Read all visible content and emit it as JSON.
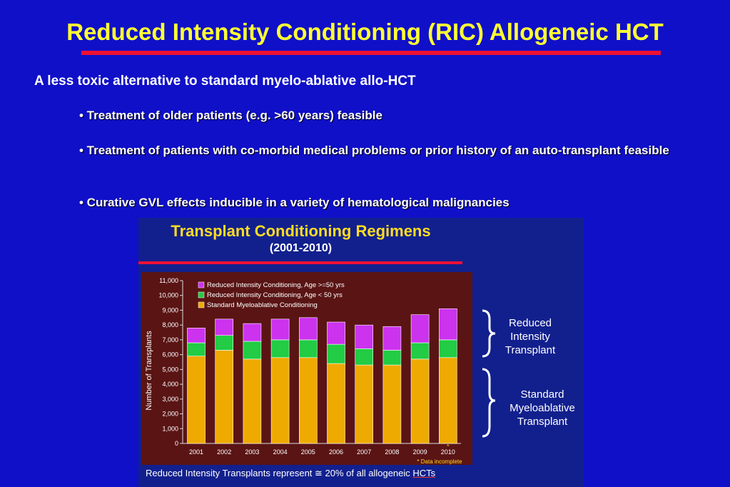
{
  "slide": {
    "title": "Reduced Intensity Conditioning (RIC) Allogeneic HCT",
    "intro": "A less toxic alternative to standard myelo-ablative allo-HCT",
    "bullets": [
      "• Treatment of older patients (e.g. >60 years) feasible",
      "• Treatment of patients with co-morbid medical problems or prior history of an auto-transplant feasible",
      "• Curative GVL effects inducible in a variety of hematological malignancies"
    ]
  },
  "figure": {
    "brace_top": "Reduced\nIntensity\nTransplant",
    "brace_bottom": "Standard\nMyeloablative\nTransplant",
    "footnote_main": "Reduced Intensity Transplants represent ≅ 20% of all allogeneic ",
    "footnote_hcts": "HCTs"
  },
  "colors": {
    "background": "#1010c8",
    "title": "#ffff33",
    "rule": "#ee1133",
    "ric_50_plus": "#cc33ee",
    "ric_under_50": "#22cc44",
    "standard_myeloablative": "#eeaa00",
    "plot_background": "#5a1414"
  },
  "chart_data": {
    "type": "bar",
    "stacked": true,
    "title": "Transplant Conditioning Regimens",
    "subtitle": "(2001-2010)",
    "xlabel": "",
    "ylabel": "Number of Transplants",
    "categories": [
      "2001",
      "2002",
      "2003",
      "2004",
      "2005",
      "2006",
      "2007",
      "2008",
      "2009",
      "2010"
    ],
    "category_marks": [
      "",
      "",
      "",
      "",
      "",
      "",
      "",
      "",
      "",
      "*"
    ],
    "ylim": [
      0,
      11000
    ],
    "yticks": [
      0,
      1000,
      2000,
      3000,
      4000,
      5000,
      6000,
      7000,
      8000,
      9000,
      10000,
      11000
    ],
    "ytick_labels": [
      "0",
      "1,000",
      "2,000",
      "3,000",
      "4,000",
      "5,000",
      "6,000",
      "7,000",
      "8,000",
      "9,000",
      "10,000",
      "11,000"
    ],
    "series": [
      {
        "name": "Standard Myeloablative Conditioning",
        "values": [
          5900,
          6300,
          5700,
          5800,
          5800,
          5400,
          5300,
          5300,
          5700,
          5800
        ]
      },
      {
        "name": "Reduced Intensity Conditioning, Age < 50 yrs",
        "values": [
          900,
          1000,
          1200,
          1200,
          1200,
          1300,
          1100,
          1000,
          1100,
          1200
        ]
      },
      {
        "name": "Reduced Intensity Conditioning, Age >=50 yrs",
        "values": [
          1000,
          1100,
          1200,
          1400,
          1500,
          1500,
          1600,
          1600,
          1900,
          2100
        ]
      }
    ],
    "legend": [
      "Reduced Intensity Conditioning, Age >=50 yrs",
      "Reduced Intensity Conditioning, Age < 50 yrs",
      "Standard Myeloablative Conditioning"
    ],
    "legend_position": "top-left",
    "annotation": "* Data incomplete",
    "grid": false
  }
}
